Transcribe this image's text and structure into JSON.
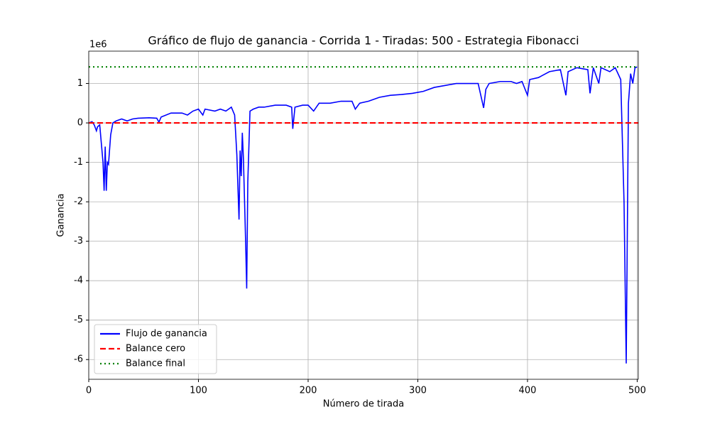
{
  "chart_data": {
    "type": "line",
    "title": "Gráfico de flujo de ganancia - Corrida 1 - Tiradas: 500 - Estrategia Fibonacci",
    "x_label": "Número de tirada",
    "y_label": "Ganancia",
    "y_offset_label": "1e6",
    "xlim": [
      0,
      501
    ],
    "ylim": [
      -6.5,
      1.82
    ],
    "xticks": [
      0,
      100,
      200,
      300,
      400,
      500
    ],
    "yticks": [
      -6,
      -5,
      -4,
      -3,
      -2,
      -1,
      0,
      1
    ],
    "grid": true,
    "legend": "lower left",
    "x": [
      0,
      3,
      5,
      7,
      8,
      10,
      13,
      14,
      15,
      16,
      17,
      18,
      20,
      22,
      25,
      30,
      35,
      40,
      45,
      55,
      62,
      64,
      66,
      75,
      85,
      90,
      95,
      100,
      104,
      106,
      115,
      120,
      125,
      130,
      133,
      135,
      137,
      138,
      139,
      140,
      141,
      143,
      144,
      145,
      147,
      150,
      155,
      160,
      170,
      180,
      185,
      186,
      188,
      195,
      200,
      205,
      210,
      220,
      230,
      240,
      243,
      247,
      255,
      265,
      275,
      285,
      295,
      305,
      315,
      325,
      335,
      345,
      355,
      360,
      362,
      365,
      375,
      385,
      390,
      395,
      400,
      402,
      410,
      420,
      430,
      435,
      437,
      445,
      455,
      457,
      460,
      465,
      467,
      475,
      480,
      485,
      488,
      490,
      492,
      494,
      496,
      498,
      500
    ],
    "series": [
      {
        "name": "Flujo de ganancia",
        "color": "#0000ff",
        "values": [
          0,
          0.03,
          -0.05,
          -0.2,
          -0.1,
          -0.05,
          -1.0,
          -1.72,
          -0.6,
          -1.72,
          -1.0,
          -1.05,
          -0.3,
          0,
          0.05,
          0.1,
          0.05,
          0.1,
          0.12,
          0.13,
          0.12,
          0.02,
          0.15,
          0.25,
          0.25,
          0.2,
          0.3,
          0.35,
          0.2,
          0.35,
          0.3,
          0.35,
          0.3,
          0.4,
          0.2,
          -0.8,
          -2.45,
          -0.7,
          -1.35,
          -0.25,
          -0.9,
          -3.0,
          -4.2,
          -1.5,
          0.3,
          0.35,
          0.4,
          0.4,
          0.45,
          0.45,
          0.4,
          -0.15,
          0.4,
          0.45,
          0.45,
          0.3,
          0.5,
          0.5,
          0.55,
          0.55,
          0.35,
          0.5,
          0.55,
          0.65,
          0.7,
          0.72,
          0.75,
          0.8,
          0.9,
          0.95,
          1.0,
          1.0,
          1.0,
          0.38,
          0.85,
          1.0,
          1.05,
          1.05,
          1.0,
          1.05,
          0.7,
          1.1,
          1.15,
          1.3,
          1.35,
          0.7,
          1.3,
          1.4,
          1.35,
          0.75,
          1.4,
          1.0,
          1.4,
          1.3,
          1.4,
          1.1,
          -2.0,
          -6.1,
          0.5,
          1.25,
          1.0,
          1.4,
          1.42
        ]
      }
    ],
    "lines": [
      {
        "name": "Balance cero",
        "color": "#ff0000",
        "style": "dashed",
        "value": 0
      },
      {
        "name": "Balance final",
        "color": "#008000",
        "style": "dotted",
        "value": 1.42
      }
    ]
  }
}
